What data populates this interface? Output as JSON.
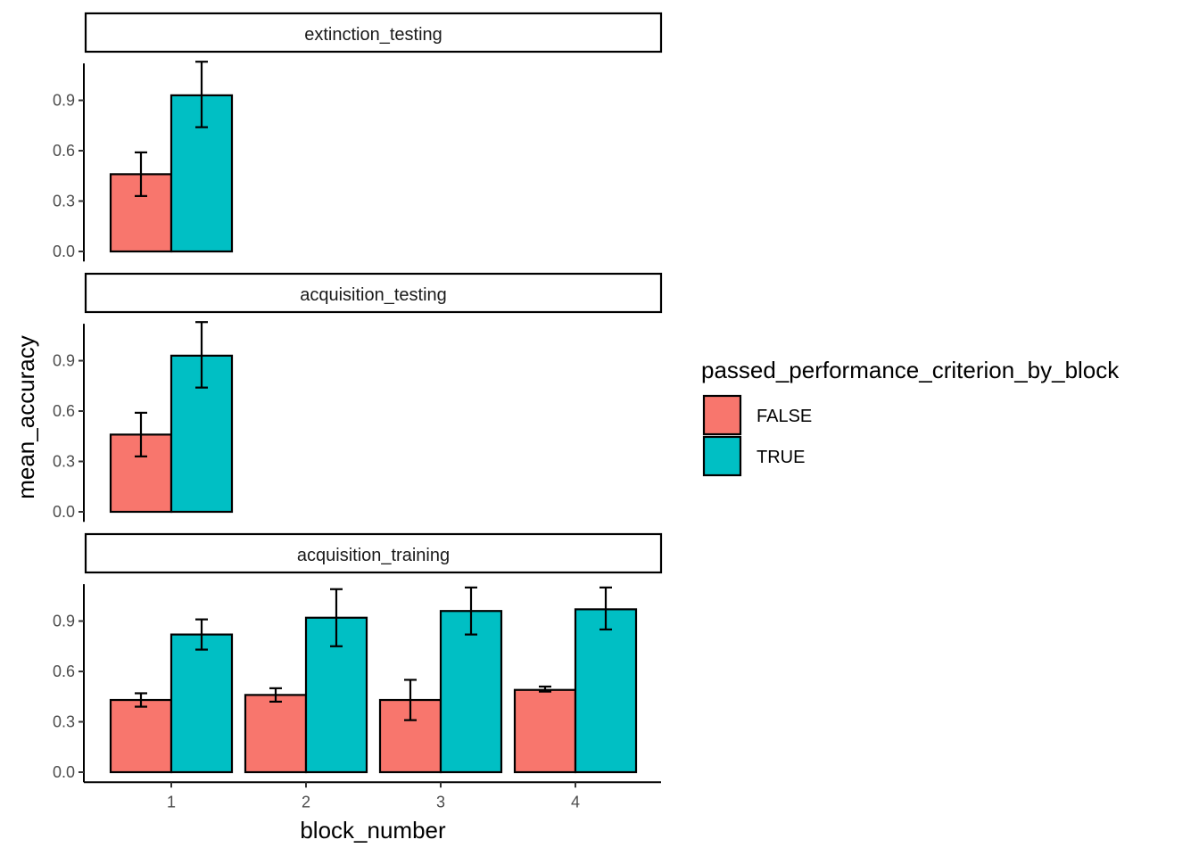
{
  "chart_data": {
    "type": "bar",
    "xlabel": "block_number",
    "ylabel": "mean_accuracy",
    "ylim": [
      -0.06,
      1.12
    ],
    "yticks": [
      0.0,
      0.3,
      0.6,
      0.9
    ],
    "ytick_labels": [
      "0.0",
      "0.3",
      "0.6",
      "0.9"
    ],
    "x_categories": [
      "1",
      "2",
      "3",
      "4"
    ],
    "colors": {
      "FALSE": "#F8766D",
      "TRUE": "#00BFC4"
    },
    "legend": {
      "title": "passed_performance_criterion_by_block",
      "entries": [
        "FALSE",
        "TRUE"
      ],
      "position": "right"
    },
    "grid": false,
    "panels": [
      {
        "name": "extinction_testing",
        "bars": [
          {
            "block": "1",
            "group": "FALSE",
            "value": 0.46,
            "lower": 0.33,
            "upper": 0.59
          },
          {
            "block": "1",
            "group": "TRUE",
            "value": 0.93,
            "lower": 0.74,
            "upper": 1.13
          }
        ]
      },
      {
        "name": "acquisition_testing",
        "bars": [
          {
            "block": "1",
            "group": "FALSE",
            "value": 0.46,
            "lower": 0.33,
            "upper": 0.59
          },
          {
            "block": "1",
            "group": "TRUE",
            "value": 0.93,
            "lower": 0.74,
            "upper": 1.13
          }
        ]
      },
      {
        "name": "acquisition_training",
        "bars": [
          {
            "block": "1",
            "group": "FALSE",
            "value": 0.43,
            "lower": 0.39,
            "upper": 0.47
          },
          {
            "block": "1",
            "group": "TRUE",
            "value": 0.82,
            "lower": 0.73,
            "upper": 0.91
          },
          {
            "block": "2",
            "group": "FALSE",
            "value": 0.46,
            "lower": 0.42,
            "upper": 0.5
          },
          {
            "block": "2",
            "group": "TRUE",
            "value": 0.92,
            "lower": 0.75,
            "upper": 1.09
          },
          {
            "block": "3",
            "group": "FALSE",
            "value": 0.43,
            "lower": 0.31,
            "upper": 0.55
          },
          {
            "block": "3",
            "group": "TRUE",
            "value": 0.96,
            "lower": 0.82,
            "upper": 1.1
          },
          {
            "block": "4",
            "group": "FALSE",
            "value": 0.49,
            "lower": 0.48,
            "upper": 0.51
          },
          {
            "block": "4",
            "group": "TRUE",
            "value": 0.97,
            "lower": 0.85,
            "upper": 1.1
          }
        ]
      }
    ]
  }
}
